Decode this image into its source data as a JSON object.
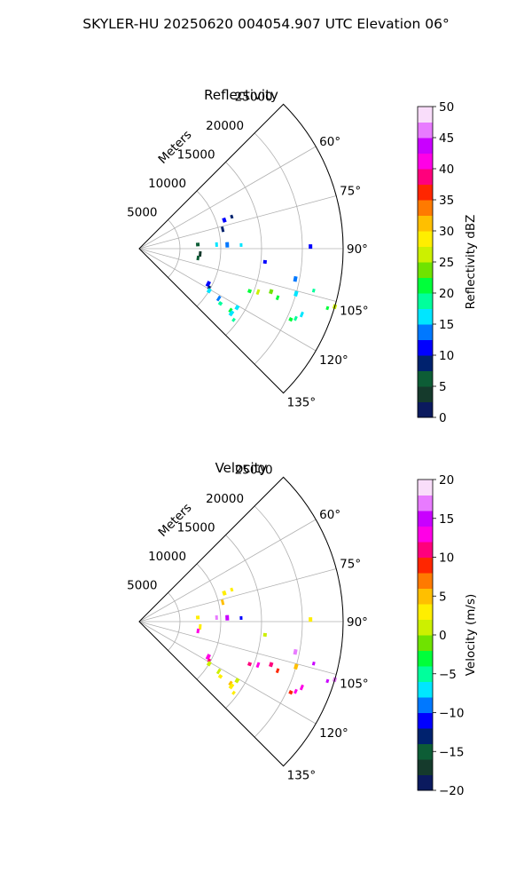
{
  "figure": {
    "title": "SKYLER-HU  20250620  004054.907 UTC Elevation 06°"
  },
  "chart_data": [
    {
      "type": "heatmap",
      "projection": "polar-sector",
      "title": "Reflectivity",
      "radial_label": "Meters",
      "radial_ticks": [
        "5000",
        "10000",
        "15000",
        "20000",
        "25000"
      ],
      "radial_tick_values": [
        5000,
        10000,
        15000,
        20000,
        25000
      ],
      "r_max": 25000,
      "azimuth_ticks": [
        "60°",
        "75°",
        "90°",
        "105°",
        "120°",
        "135°"
      ],
      "azimuth_tick_values": [
        60,
        75,
        90,
        105,
        120,
        135
      ],
      "azimuth_range": [
        45,
        135
      ],
      "grid": true,
      "colorbar": {
        "label": "Reflectivity dBZ",
        "ticks": [
          "0",
          "5",
          "10",
          "15",
          "20",
          "25",
          "30",
          "35",
          "40",
          "45",
          "50"
        ],
        "range": [
          0,
          50
        ],
        "colors": [
          "#0b1a5e",
          "#153a2c",
          "#0d5d36",
          "#00226e",
          "#0000ff",
          "#0078ff",
          "#00e6ff",
          "#00ff9c",
          "#00ff3a",
          "#6fe300",
          "#ccf000",
          "#ffee00",
          "#ffbf00",
          "#ff7a00",
          "#ff2600",
          "#ff007c",
          "#ff00e6",
          "#c900ff",
          "#e87bff",
          "#f9ddfa"
        ]
      },
      "echoes": [
        {
          "az": 71,
          "r": 12000,
          "value": 8
        },
        {
          "az": 71.5,
          "r": 11000,
          "value": 11
        },
        {
          "az": 77,
          "r": 10500,
          "value": 9
        },
        {
          "az": 86,
          "r": 7200,
          "value": 6
        },
        {
          "az": 87,
          "r": 9500,
          "value": 15
        },
        {
          "az": 87.5,
          "r": 10800,
          "value": 13
        },
        {
          "az": 88,
          "r": 12500,
          "value": 16
        },
        {
          "az": 89.3,
          "r": 21000,
          "value": 12
        },
        {
          "az": 95,
          "r": 7500,
          "value": 4
        },
        {
          "az": 96,
          "r": 15500,
          "value": 10
        },
        {
          "az": 99,
          "r": 7300,
          "value": 5
        },
        {
          "az": 101,
          "r": 19500,
          "value": 13
        },
        {
          "az": 103.5,
          "r": 22000,
          "value": 19
        },
        {
          "az": 108,
          "r": 17000,
          "value": 24
        },
        {
          "az": 110,
          "r": 15500,
          "value": 27
        },
        {
          "az": 111,
          "r": 14500,
          "value": 22
        },
        {
          "az": 109.5,
          "r": 18000,
          "value": 21
        },
        {
          "az": 106,
          "r": 20000,
          "value": 16
        },
        {
          "az": 107.5,
          "r": 24200,
          "value": 22
        },
        {
          "az": 106.5,
          "r": 25000,
          "value": 25
        },
        {
          "az": 112,
          "r": 21500,
          "value": 16
        },
        {
          "az": 115,
          "r": 20500,
          "value": 21
        },
        {
          "az": 114,
          "r": 21000,
          "value": 18
        },
        {
          "az": 117,
          "r": 9500,
          "value": 11
        },
        {
          "az": 119,
          "r": 9800,
          "value": 8
        },
        {
          "az": 121,
          "r": 10000,
          "value": 16
        },
        {
          "az": 122,
          "r": 11500,
          "value": 14
        },
        {
          "az": 124,
          "r": 12000,
          "value": 18
        },
        {
          "az": 124,
          "r": 13500,
          "value": 20
        },
        {
          "az": 125,
          "r": 13800,
          "value": 16
        },
        {
          "az": 127,
          "r": 14500,
          "value": 19
        },
        {
          "az": 121,
          "r": 14000,
          "value": 17
        }
      ]
    },
    {
      "type": "heatmap",
      "projection": "polar-sector",
      "title": "Velocity",
      "radial_label": "Meters",
      "radial_ticks": [
        "5000",
        "10000",
        "15000",
        "20000",
        "25000"
      ],
      "radial_tick_values": [
        5000,
        10000,
        15000,
        20000,
        25000
      ],
      "r_max": 25000,
      "azimuth_ticks": [
        "60°",
        "75°",
        "90°",
        "105°",
        "120°",
        "135°"
      ],
      "azimuth_tick_values": [
        60,
        75,
        90,
        105,
        120,
        135
      ],
      "azimuth_range": [
        45,
        135
      ],
      "grid": true,
      "colorbar": {
        "label": "Velocity (m/s)",
        "ticks": [
          "−20",
          "−15",
          "−10",
          "−5",
          "0",
          "5",
          "10",
          "15",
          "20"
        ],
        "range": [
          -20,
          20
        ],
        "colors": [
          "#0b1a5e",
          "#153a2c",
          "#0d5d36",
          "#00226e",
          "#0000ff",
          "#0078ff",
          "#00e6ff",
          "#00ff9c",
          "#00ff3a",
          "#6fe300",
          "#ccf000",
          "#ffee00",
          "#ffbf00",
          "#ff7a00",
          "#ff2600",
          "#ff007c",
          "#ff00e6",
          "#c900ff",
          "#e87bff",
          "#f9ddfa"
        ]
      },
      "echoes": [
        {
          "az": 71,
          "r": 12000,
          "value": 3
        },
        {
          "az": 71.5,
          "r": 11000,
          "value": 2
        },
        {
          "az": 77,
          "r": 10500,
          "value": 4
        },
        {
          "az": 86,
          "r": 7200,
          "value": 2
        },
        {
          "az": 87,
          "r": 9500,
          "value": 16
        },
        {
          "az": 87.5,
          "r": 10800,
          "value": 14
        },
        {
          "az": 88,
          "r": 12500,
          "value": -11
        },
        {
          "az": 89.3,
          "r": 21000,
          "value": 3
        },
        {
          "az": 95,
          "r": 7500,
          "value": 2
        },
        {
          "az": 96,
          "r": 15500,
          "value": 1
        },
        {
          "az": 99,
          "r": 7300,
          "value": 12
        },
        {
          "az": 101,
          "r": 19500,
          "value": 16
        },
        {
          "az": 103.5,
          "r": 22000,
          "value": 14
        },
        {
          "az": 108,
          "r": 17000,
          "value": 10
        },
        {
          "az": 110,
          "r": 15500,
          "value": 12
        },
        {
          "az": 111,
          "r": 14500,
          "value": 10
        },
        {
          "az": 109.5,
          "r": 18000,
          "value": 8
        },
        {
          "az": 106,
          "r": 20000,
          "value": 5
        },
        {
          "az": 107.5,
          "r": 24200,
          "value": 15
        },
        {
          "az": 106.5,
          "r": 25000,
          "value": 16
        },
        {
          "az": 112,
          "r": 21500,
          "value": 12
        },
        {
          "az": 115,
          "r": 20500,
          "value": 9
        },
        {
          "az": 114,
          "r": 21000,
          "value": 13
        },
        {
          "az": 117,
          "r": 9500,
          "value": 12
        },
        {
          "az": 119,
          "r": 9800,
          "value": 10
        },
        {
          "az": 121,
          "r": 10000,
          "value": 1
        },
        {
          "az": 122,
          "r": 11500,
          "value": 1
        },
        {
          "az": 124,
          "r": 12000,
          "value": 2
        },
        {
          "az": 124,
          "r": 13500,
          "value": 4
        },
        {
          "az": 125,
          "r": 13800,
          "value": 2
        },
        {
          "az": 127,
          "r": 14500,
          "value": 3
        },
        {
          "az": 121,
          "r": 14000,
          "value": 1
        }
      ]
    }
  ]
}
